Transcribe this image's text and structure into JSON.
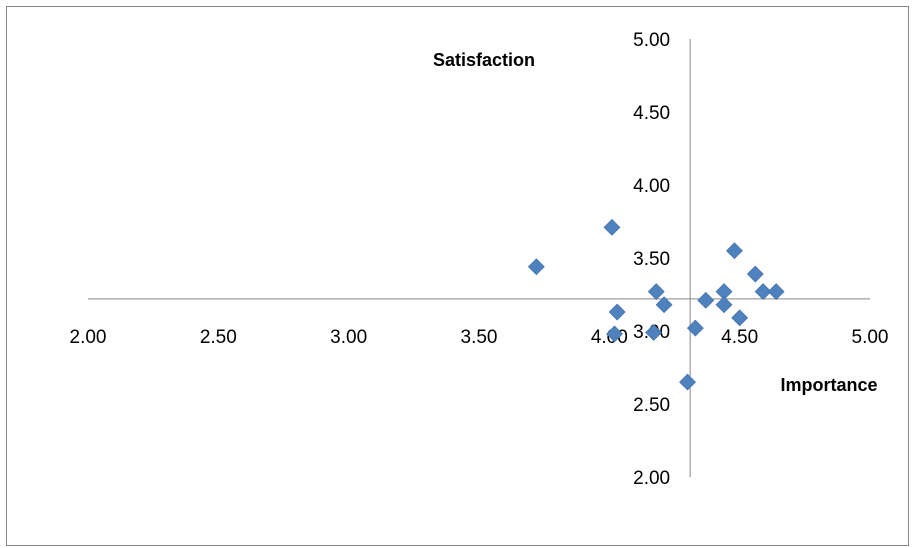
{
  "chart_data": {
    "type": "scatter",
    "title": "",
    "xlabel": "Importance",
    "ylabel": "Satisfaction",
    "xlim": [
      2.0,
      5.0
    ],
    "ylim": [
      2.0,
      5.0
    ],
    "x_ticks": [
      "2.00",
      "2.50",
      "3.00",
      "3.50",
      "4.00",
      "4.50",
      "5.00"
    ],
    "y_ticks": [
      "2.00",
      "2.50",
      "3.00",
      "3.50",
      "4.00",
      "4.50",
      "5.00"
    ],
    "axes_cross": {
      "x": 4.31,
      "y": 3.22
    },
    "grid": false,
    "legend": "none",
    "marker": "diamond",
    "series": [
      {
        "color": "#4F81BD",
        "points": [
          [
            3.72,
            3.44
          ],
          [
            4.01,
            3.71
          ],
          [
            4.48,
            3.55
          ],
          [
            4.56,
            3.39
          ],
          [
            4.59,
            3.27
          ],
          [
            4.64,
            3.27
          ],
          [
            4.44,
            3.27
          ],
          [
            4.37,
            3.21
          ],
          [
            4.44,
            3.18
          ],
          [
            4.5,
            3.09
          ],
          [
            4.33,
            3.02
          ],
          [
            4.21,
            3.18
          ],
          [
            4.18,
            3.27
          ],
          [
            4.03,
            3.13
          ],
          [
            4.02,
            2.98
          ],
          [
            4.17,
            2.99
          ],
          [
            4.3,
            2.65
          ]
        ]
      }
    ]
  }
}
